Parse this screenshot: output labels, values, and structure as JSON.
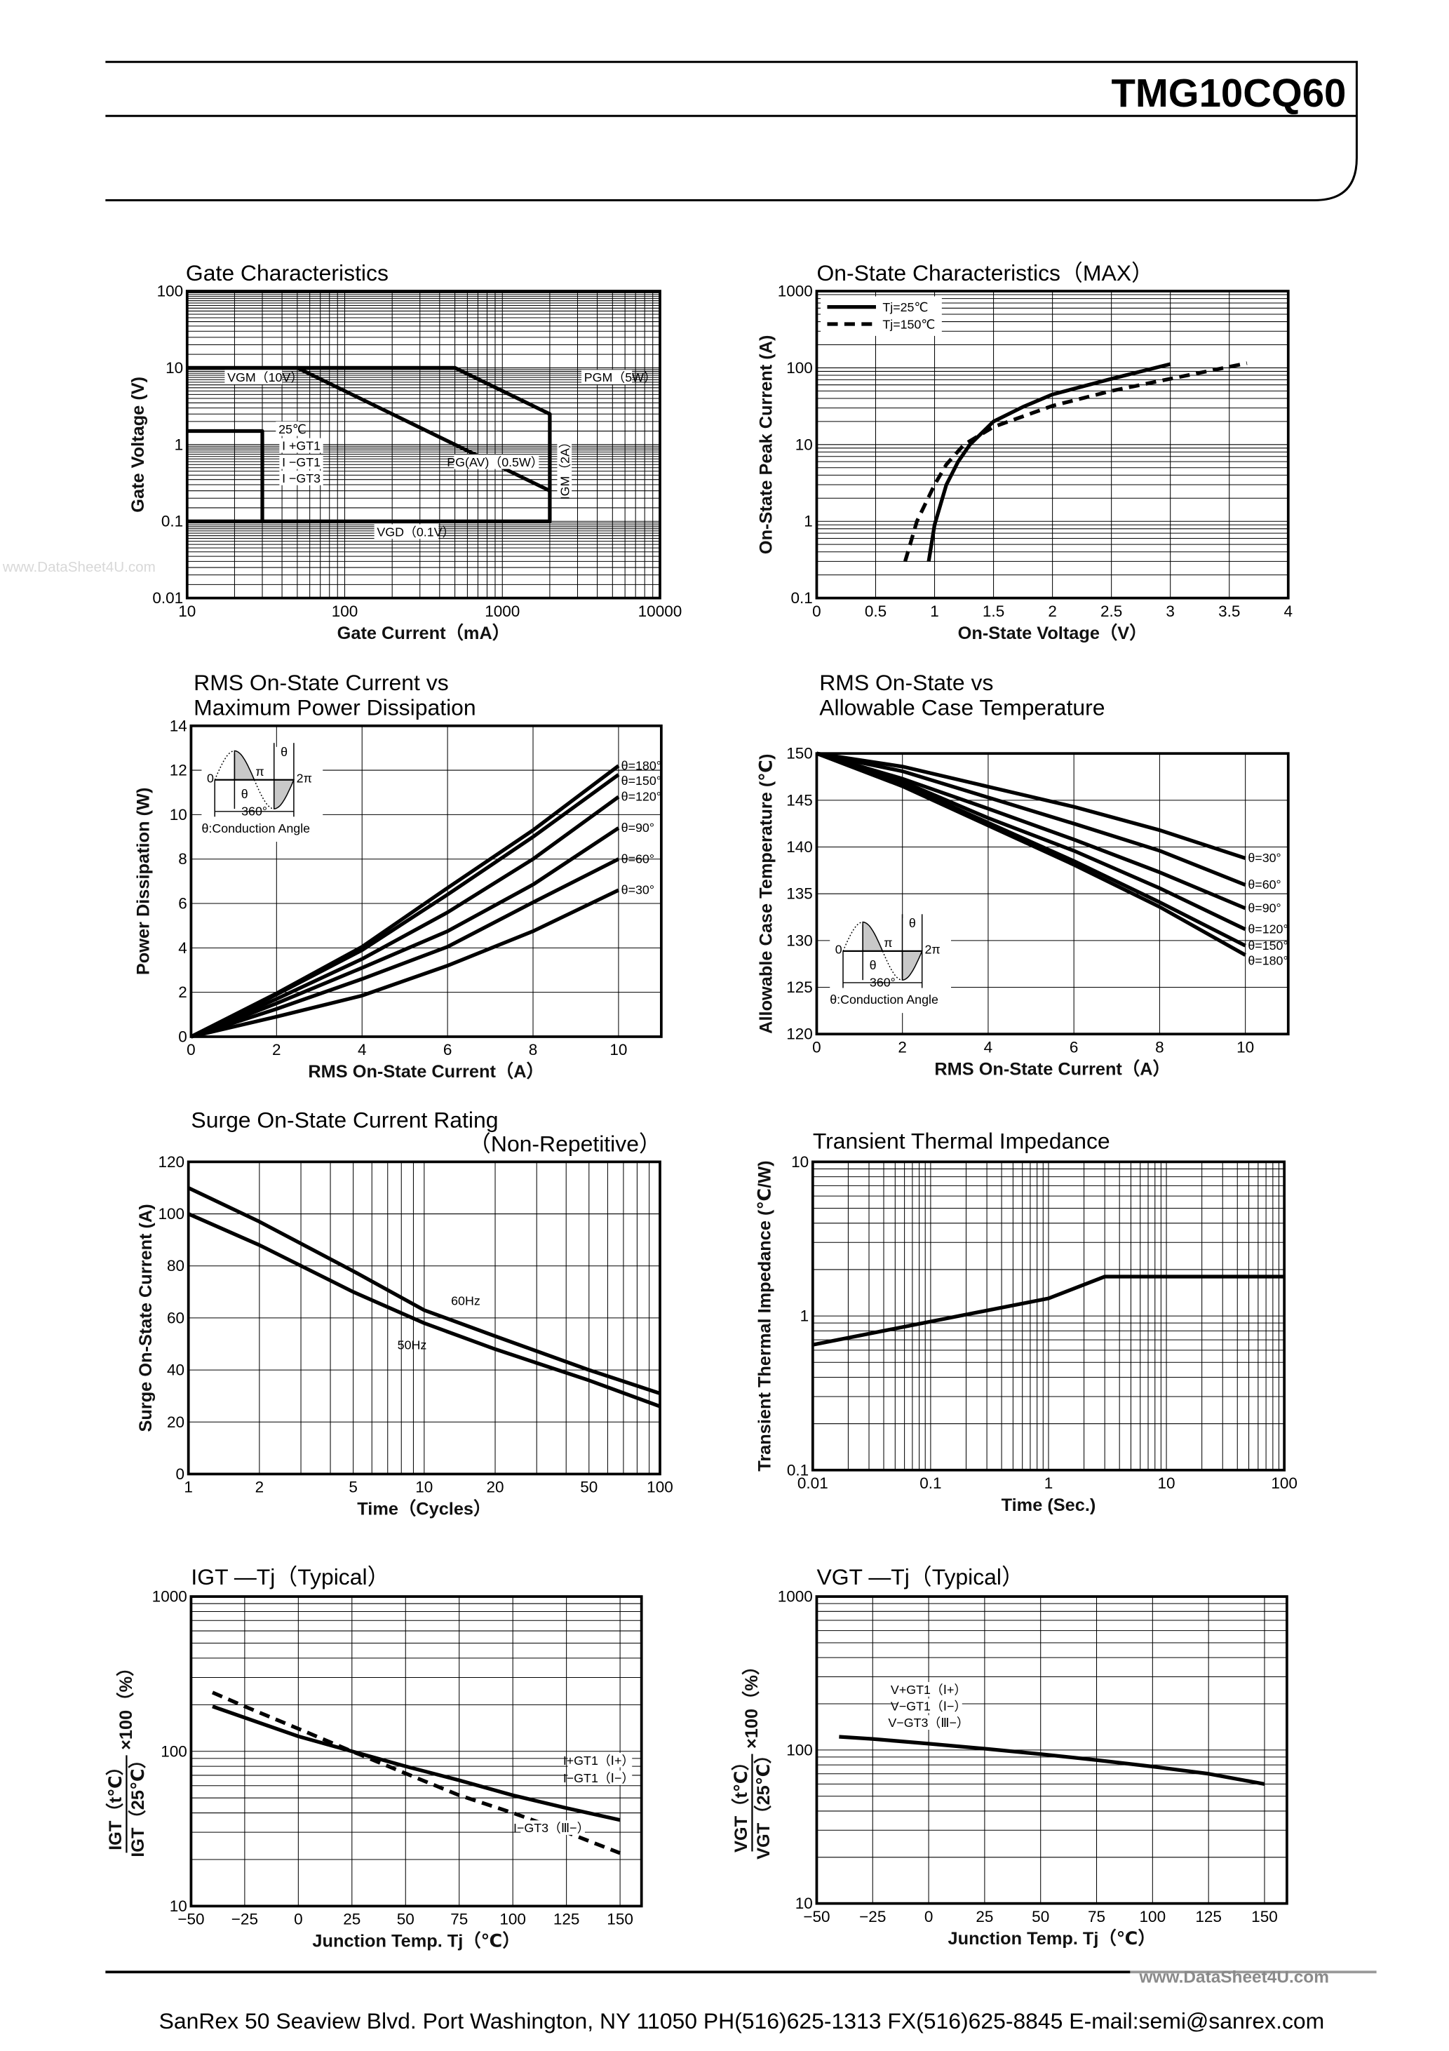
{
  "header": {
    "part_number": "TMG10CQ60"
  },
  "watermarks": {
    "left": "www.DataSheet4U.com",
    "footer": "www.DataSheet4U.com"
  },
  "footer": {
    "address": "SanRex 50 Seaview Blvd. Port Washington, NY 11050 PH(516)625-1313 FX(516)625-8845 E-mail:semi@sanrex.com"
  },
  "chart_data": [
    {
      "type": "line",
      "title": [
        "Gate Characteristics"
      ],
      "xlabel": "Gate Current（mA）",
      "ylabel": "Gate Voltage (V)",
      "xscale": "log",
      "yscale": "log",
      "xlim": [
        10,
        10000
      ],
      "ylim": [
        0.01,
        100
      ],
      "xticks": [
        10,
        100,
        1000,
        10000
      ],
      "xtick_labels": [
        "10",
        "100",
        "1000",
        "10000"
      ],
      "yticks": [
        0.01,
        0.1,
        1,
        10,
        100
      ],
      "ytick_labels": [
        "0.01",
        "0.1",
        "1",
        "10",
        "100"
      ],
      "grid": true,
      "series": [
        {
          "name": "",
          "style": "solid",
          "points": [
            [
              10,
              10
            ],
            [
              500,
              10
            ],
            [
              2000,
              2.5
            ],
            [
              2000,
              0.1
            ],
            [
              10,
              0.1
            ]
          ]
        },
        {
          "name": "",
          "style": "solid",
          "points": [
            [
              50,
              10
            ],
            [
              2000,
              0.25
            ]
          ]
        },
        {
          "name": "",
          "style": "solid",
          "points": [
            [
              10,
              1.5
            ],
            [
              30,
              1.5
            ],
            [
              30,
              0.1
            ]
          ]
        }
      ],
      "annotations": [
        "VGM（10V）",
        "PGM（5W）",
        "PG(AV)（0.5W）",
        "IGM（2A）",
        "VGD（0.1V）",
        "25℃",
        "I +GT1",
        "I −GT1",
        "I −GT3"
      ]
    },
    {
      "type": "line",
      "title": [
        "On-State Characteristics（MAX）"
      ],
      "xlabel": "On-State Voltage（V）",
      "ylabel": "On-State Peak Current (A)",
      "xscale": "linear",
      "yscale": "log",
      "xlim": [
        0,
        4
      ],
      "ylim": [
        0.1,
        1000
      ],
      "xticks": [
        0,
        0.5,
        1,
        1.5,
        2,
        2.5,
        3,
        3.5,
        4
      ],
      "xtick_labels": [
        "0",
        "0.5",
        "1",
        "1.5",
        "2",
        "2.5",
        "3",
        "3.5",
        "4"
      ],
      "yticks": [
        0.1,
        1,
        10,
        100,
        1000
      ],
      "ytick_labels": [
        "0.1",
        "1",
        "10",
        "100",
        "1000"
      ],
      "grid": true,
      "legend": "top-left",
      "series": [
        {
          "name": "Tj=25℃",
          "style": "solid",
          "points": [
            [
              0.95,
              0.3
            ],
            [
              1.0,
              0.9
            ],
            [
              1.1,
              3
            ],
            [
              1.2,
              6
            ],
            [
              1.3,
              10
            ],
            [
              1.5,
              20
            ],
            [
              1.75,
              31
            ],
            [
              2,
              45
            ],
            [
              2.5,
              72
            ],
            [
              3,
              112
            ]
          ]
        },
        {
          "name": "Tj=150℃",
          "style": "dashed",
          "points": [
            [
              0.75,
              0.3
            ],
            [
              0.85,
              1
            ],
            [
              1.0,
              3
            ],
            [
              1.1,
              5.5
            ],
            [
              1.25,
              10
            ],
            [
              1.5,
              17
            ],
            [
              2,
              32
            ],
            [
              2.5,
              50
            ],
            [
              3,
              72
            ],
            [
              3.65,
              115
            ]
          ]
        }
      ]
    },
    {
      "type": "line",
      "title": [
        "RMS On-State Current vs",
        "Maximum Power Dissipation"
      ],
      "xlabel": "RMS On-State Current（A）",
      "ylabel": "Power Dissipation (W)",
      "xscale": "linear",
      "yscale": "linear",
      "xlim": [
        0,
        11
      ],
      "ylim": [
        0,
        14
      ],
      "xticks": [
        0,
        2,
        4,
        6,
        8,
        10
      ],
      "xtick_labels": [
        "0",
        "2",
        "4",
        "6",
        "8",
        "10"
      ],
      "yticks": [
        0,
        2,
        4,
        6,
        8,
        10,
        12,
        14
      ],
      "ytick_labels": [
        "0",
        "2",
        "4",
        "6",
        "8",
        "10",
        "12",
        "14"
      ],
      "grid": true,
      "series": [
        {
          "name": "θ=180°",
          "style": "solid",
          "points": [
            [
              0,
              0
            ],
            [
              2,
              1.95
            ],
            [
              4,
              4.05
            ],
            [
              6,
              6.7
            ],
            [
              8,
              9.3
            ],
            [
              10,
              12.2
            ]
          ]
        },
        {
          "name": "θ=150°",
          "style": "solid",
          "points": [
            [
              0,
              0
            ],
            [
              2,
              1.9
            ],
            [
              4,
              3.9
            ],
            [
              6,
              6.4
            ],
            [
              8,
              9.0
            ],
            [
              10,
              11.8
            ]
          ]
        },
        {
          "name": "θ=120°",
          "style": "solid",
          "points": [
            [
              0,
              0
            ],
            [
              2,
              1.7
            ],
            [
              4,
              3.5
            ],
            [
              6,
              5.6
            ],
            [
              8,
              8.0
            ],
            [
              10,
              10.8
            ]
          ]
        },
        {
          "name": "θ=90°",
          "style": "solid",
          "points": [
            [
              0,
              0
            ],
            [
              2,
              1.5
            ],
            [
              4,
              3.1
            ],
            [
              6,
              4.75
            ],
            [
              8,
              6.85
            ],
            [
              10,
              9.4
            ]
          ]
        },
        {
          "name": "θ=60°",
          "style": "solid",
          "points": [
            [
              0,
              0
            ],
            [
              2,
              1.25
            ],
            [
              4,
              2.6
            ],
            [
              6,
              4.05
            ],
            [
              8,
              6.05
            ],
            [
              10,
              8.0
            ]
          ]
        },
        {
          "name": "θ=30°",
          "style": "solid",
          "points": [
            [
              0,
              0
            ],
            [
              2,
              0.9
            ],
            [
              4,
              1.85
            ],
            [
              6,
              3.2
            ],
            [
              8,
              4.75
            ],
            [
              10,
              6.6
            ]
          ]
        }
      ],
      "inset": {
        "zero": "0",
        "pi": "π",
        "two_pi": "2π",
        "theta": "θ",
        "period": "360°",
        "caption": "θ:Conduction Angle"
      }
    },
    {
      "type": "line",
      "title": [
        "RMS On-State vs",
        "Allowable Case Temperature"
      ],
      "xlabel": "RMS On-State Current（A）",
      "ylabel": "Allowable Case Temperature (℃)",
      "xscale": "linear",
      "yscale": "linear",
      "xlim": [
        0,
        11
      ],
      "ylim": [
        120,
        150
      ],
      "xticks": [
        0,
        2,
        4,
        6,
        8,
        10
      ],
      "xtick_labels": [
        "0",
        "2",
        "4",
        "6",
        "8",
        "10"
      ],
      "yticks": [
        120,
        125,
        130,
        135,
        140,
        145,
        150
      ],
      "ytick_labels": [
        "120",
        "125",
        "130",
        "135",
        "140",
        "145",
        "150"
      ],
      "grid": true,
      "series": [
        {
          "name": "θ=30°",
          "style": "solid",
          "points": [
            [
              0,
              150
            ],
            [
              2,
              148.6
            ],
            [
              4,
              146.45
            ],
            [
              6,
              144.3
            ],
            [
              8,
              141.8
            ],
            [
              10,
              138.8
            ]
          ]
        },
        {
          "name": "θ=60°",
          "style": "solid",
          "points": [
            [
              0,
              150
            ],
            [
              2,
              148.1
            ],
            [
              4,
              145.3
            ],
            [
              6,
              142.5
            ],
            [
              8,
              139.6
            ],
            [
              10,
              135.95
            ]
          ]
        },
        {
          "name": "θ=90°",
          "style": "solid",
          "points": [
            [
              0,
              150
            ],
            [
              2,
              147.3
            ],
            [
              4,
              144.1
            ],
            [
              6,
              140.8
            ],
            [
              8,
              137.3
            ],
            [
              10,
              133.45
            ]
          ]
        },
        {
          "name": "θ=120°",
          "style": "solid",
          "points": [
            [
              0,
              150
            ],
            [
              2,
              147.0
            ],
            [
              4,
              143.1
            ],
            [
              6,
              139.6
            ],
            [
              8,
              135.6
            ],
            [
              10,
              131.2
            ]
          ]
        },
        {
          "name": "θ=150°",
          "style": "solid",
          "points": [
            [
              0,
              150
            ],
            [
              2,
              146.7
            ],
            [
              4,
              142.6
            ],
            [
              6,
              138.5
            ],
            [
              8,
              134.1
            ],
            [
              10,
              129.45
            ]
          ]
        },
        {
          "name": "θ=180°",
          "style": "solid",
          "points": [
            [
              0,
              150
            ],
            [
              2,
              146.5
            ],
            [
              4,
              142.3
            ],
            [
              6,
              138.1
            ],
            [
              8,
              133.6
            ],
            [
              10,
              128.45
            ]
          ]
        }
      ],
      "inset": {
        "zero": "0",
        "pi": "π",
        "two_pi": "2π",
        "theta": "θ",
        "period": "360°",
        "caption": "θ:Conduction Angle"
      }
    },
    {
      "type": "line",
      "title": [
        "Surge On-State Current Rating",
        "（Non-Repetitive）"
      ],
      "xlabel": "Time（Cycles）",
      "ylabel": "Surge On-State Current (A)",
      "xscale": "log",
      "yscale": "linear",
      "xlim": [
        1,
        100
      ],
      "ylim": [
        0,
        120
      ],
      "xticks": [
        1,
        2,
        5,
        10,
        20,
        50,
        100
      ],
      "xtick_labels": [
        "1",
        "2",
        "5",
        "10",
        "20",
        "50",
        "100"
      ],
      "yticks": [
        0,
        20,
        40,
        60,
        80,
        100,
        120
      ],
      "ytick_labels": [
        "0",
        "20",
        "40",
        "60",
        "80",
        "100",
        "120"
      ],
      "grid": true,
      "series": [
        {
          "name": "60Hz",
          "style": "solid",
          "points": [
            [
              1,
              110
            ],
            [
              2,
              97
            ],
            [
              5,
              78
            ],
            [
              10,
              63
            ],
            [
              20,
              53
            ],
            [
              50,
              40
            ],
            [
              100,
              31
            ]
          ]
        },
        {
          "name": "50Hz",
          "style": "solid",
          "points": [
            [
              1,
              100
            ],
            [
              2,
              88
            ],
            [
              5,
              70
            ],
            [
              10,
              58
            ],
            [
              20,
              48
            ],
            [
              50,
              36
            ],
            [
              100,
              26
            ]
          ]
        }
      ]
    },
    {
      "type": "line",
      "title": [
        "Transient Thermal Impedance"
      ],
      "xlabel": "Time (Sec.)",
      "ylabel": "Transient Thermal Impedance (℃/W)",
      "xscale": "log",
      "yscale": "log",
      "xlim": [
        0.01,
        100
      ],
      "ylim": [
        0.1,
        10
      ],
      "xticks": [
        0.01,
        0.1,
        1,
        10,
        100
      ],
      "xtick_labels": [
        "0.01",
        "0.1",
        "1",
        "10",
        "100"
      ],
      "yticks": [
        0.1,
        1,
        10
      ],
      "ytick_labels": [
        "0.1",
        "1",
        "10"
      ],
      "grid": true,
      "series": [
        {
          "name": "",
          "style": "solid",
          "points": [
            [
              0.01,
              0.65
            ],
            [
              0.1,
              0.92
            ],
            [
              1,
              1.3
            ],
            [
              3,
              1.8
            ],
            [
              100,
              1.8
            ]
          ]
        }
      ]
    },
    {
      "type": "line",
      "title": [
        "IGT —Tj（Typical）"
      ],
      "xlabel": "Junction Temp. Tj（℃）",
      "ylabel": {
        "numerator": "IGT（t℃）",
        "denominator": "IGT（25℃）",
        "factor": "×100（%）"
      },
      "xscale": "linear",
      "yscale": "log",
      "xlim": [
        -50,
        160
      ],
      "ylim": [
        10,
        1000
      ],
      "xticks": [
        -50,
        -25,
        0,
        25,
        50,
        75,
        100,
        125,
        150
      ],
      "xtick_labels": [
        "−50",
        "−25",
        "0",
        "25",
        "50",
        "75",
        "100",
        "125",
        "150"
      ],
      "yticks": [
        10,
        100,
        1000
      ],
      "ytick_labels": [
        "10",
        "100",
        "1000"
      ],
      "grid": true,
      "series": [
        {
          "name": "I+GT1（Ⅰ+）  I−GT1（Ⅰ−）",
          "style": "solid",
          "points": [
            [
              -40,
              195
            ],
            [
              -25,
              165
            ],
            [
              0,
              125
            ],
            [
              25,
              100
            ],
            [
              50,
              80
            ],
            [
              75,
              65
            ],
            [
              100,
              52
            ],
            [
              125,
              43
            ],
            [
              150,
              36
            ]
          ]
        },
        {
          "name": "I−GT3（Ⅲ−）",
          "style": "dashed",
          "points": [
            [
              -40,
              240
            ],
            [
              -25,
              195
            ],
            [
              0,
              140
            ],
            [
              25,
              100
            ],
            [
              50,
              72
            ],
            [
              75,
              52
            ],
            [
              100,
              40
            ],
            [
              125,
              30
            ],
            [
              150,
              22
            ]
          ]
        }
      ],
      "annotations": [
        "I+GT1（Ⅰ+）",
        "I−GT1（Ⅰ−）",
        "I−GT3（Ⅲ−）"
      ]
    },
    {
      "type": "line",
      "title": [
        "VGT —Tj（Typical）"
      ],
      "xlabel": "Junction Temp. Tj（℃）",
      "ylabel": {
        "numerator": "VGT（t℃）",
        "denominator": "VGT（25℃）",
        "factor": "×100（%）"
      },
      "xscale": "linear",
      "yscale": "log",
      "xlim": [
        -50,
        160
      ],
      "ylim": [
        10,
        1000
      ],
      "xticks": [
        -50,
        -25,
        0,
        25,
        50,
        75,
        100,
        125,
        150
      ],
      "xtick_labels": [
        "−50",
        "−25",
        "0",
        "25",
        "50",
        "75",
        "100",
        "125",
        "150"
      ],
      "yticks": [
        10,
        100,
        1000
      ],
      "ytick_labels": [
        "10",
        "100",
        "1000"
      ],
      "grid": true,
      "series": [
        {
          "name": "V+GT1（Ⅰ+） V−GT1（Ⅰ−） V−GT3（Ⅲ−）",
          "style": "solid",
          "points": [
            [
              -40,
              122
            ],
            [
              -25,
              118
            ],
            [
              0,
              110
            ],
            [
              25,
              102
            ],
            [
              50,
              94
            ],
            [
              75,
              86
            ],
            [
              100,
              78
            ],
            [
              125,
              70
            ],
            [
              150,
              60
            ]
          ]
        }
      ],
      "annotations": [
        "V+GT1（Ⅰ+）",
        "V−GT1（Ⅰ−）",
        "V−GT3（Ⅲ−）"
      ]
    }
  ]
}
